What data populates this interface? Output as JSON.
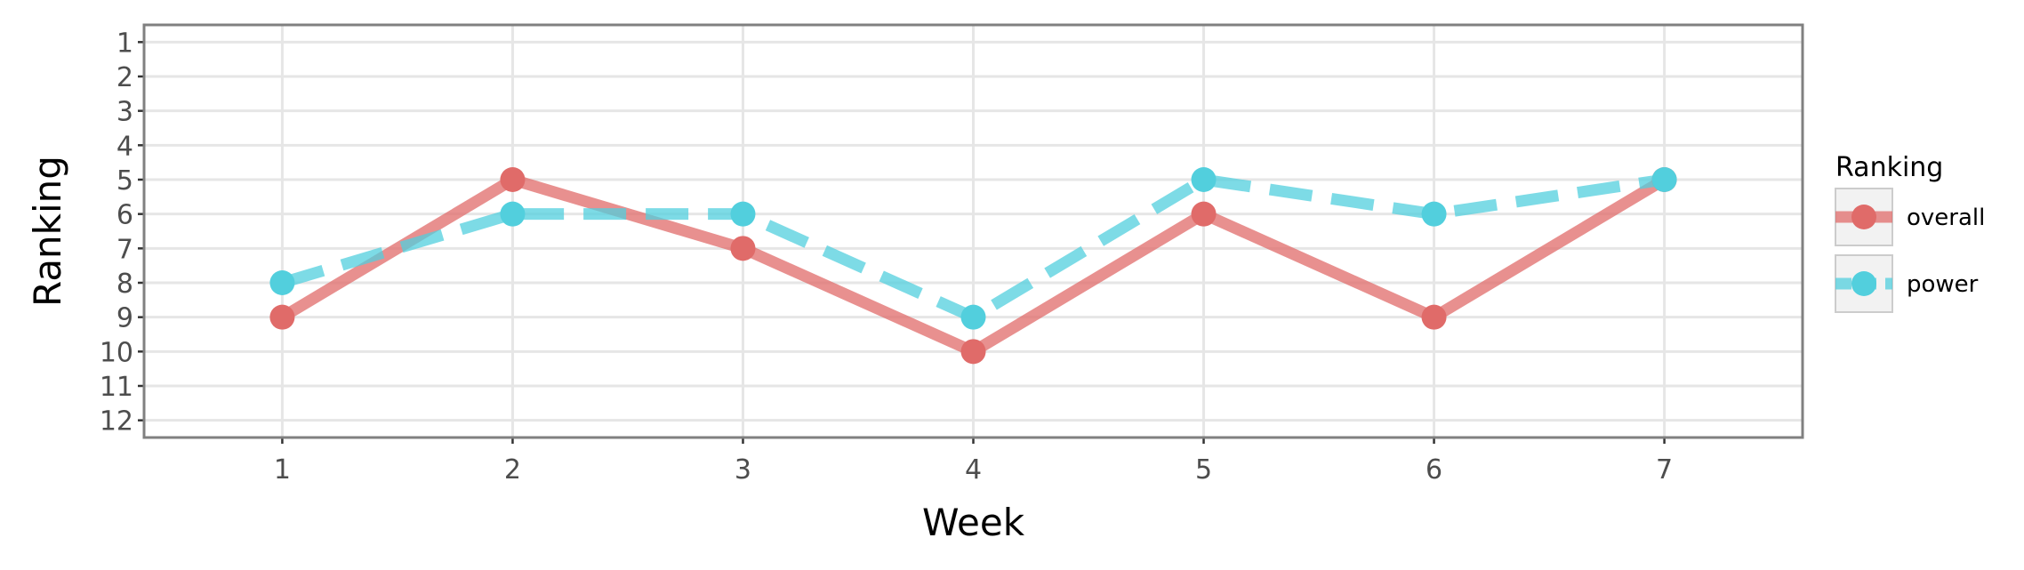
{
  "chart_data": {
    "type": "line",
    "xlabel": "Week",
    "ylabel": "Ranking",
    "x": [
      1,
      2,
      3,
      4,
      5,
      6,
      7
    ],
    "xlim": [
      0.4,
      7.6
    ],
    "ylim": [
      12.5,
      0.5
    ],
    "y_reversed": true,
    "y_ticks": [
      1,
      2,
      3,
      4,
      5,
      6,
      7,
      8,
      9,
      10,
      11,
      12
    ],
    "grid": true,
    "legend": {
      "title": "Ranking",
      "position": "right"
    },
    "series": [
      {
        "name": "overall",
        "values": [
          9,
          5,
          7,
          10,
          6,
          9,
          5
        ],
        "color": "#e06b69",
        "linestyle": "solid"
      },
      {
        "name": "power",
        "values": [
          8,
          6,
          6,
          9,
          5,
          6,
          5
        ],
        "color": "#52cfdd",
        "linestyle": "dashed"
      }
    ],
    "colors": {
      "grid": "#e6e6e6",
      "frame": "#808080",
      "panel": "#ffffff"
    }
  }
}
